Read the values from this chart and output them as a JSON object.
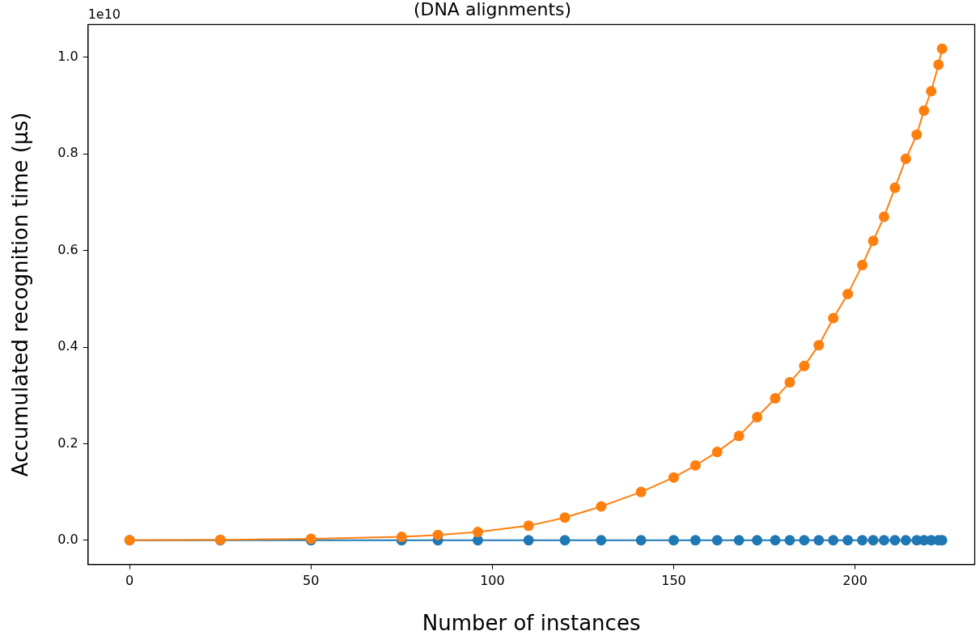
{
  "chart_data": {
    "type": "line",
    "title": "(DNA alignments)",
    "xlabel": "Number of instances",
    "ylabel": "Accumulated recognition time (μs)",
    "annotations": [
      "1e10"
    ],
    "x": [
      0,
      25,
      50,
      75,
      85,
      96,
      110,
      120,
      130,
      141,
      150,
      156,
      162,
      168,
      173,
      178,
      182,
      186,
      190,
      194,
      198,
      202,
      205,
      208,
      211,
      214,
      217,
      219,
      221,
      223,
      224
    ],
    "series": [
      {
        "color": "#1f77b4",
        "values": [
          0,
          0,
          0,
          0,
          0,
          0,
          0,
          0,
          0,
          0,
          0,
          0,
          0,
          0,
          0,
          0,
          0,
          0,
          0,
          0,
          0,
          0,
          0,
          0,
          0,
          0,
          0,
          0,
          0,
          0,
          0
        ]
      },
      {
        "color": "#ff7f0e",
        "values": [
          0,
          0.001,
          0.003,
          0.007,
          0.011,
          0.017,
          0.03,
          0.047,
          0.07,
          0.1,
          0.13,
          0.155,
          0.183,
          0.216,
          0.255,
          0.294,
          0.327,
          0.361,
          0.404,
          0.46,
          0.51,
          0.57,
          0.62,
          0.67,
          0.73,
          0.79,
          0.84,
          0.89,
          0.93,
          0.985,
          1.018
        ]
      }
    ],
    "xlim": [
      -11.5,
      233
    ],
    "xticks": [
      0,
      50,
      100,
      150,
      200
    ],
    "ylim": [
      -0.05,
      1.068
    ],
    "yticks": [
      {
        "value": 0,
        "label": "0.0"
      },
      {
        "value": 0.2,
        "label": "0.2"
      },
      {
        "value": 0.4,
        "label": "0.4"
      },
      {
        "value": 0.6,
        "label": "0.6"
      },
      {
        "value": 0.8,
        "label": "0.8"
      },
      {
        "value": 1,
        "label": "1.0"
      }
    ],
    "grid": false,
    "legend": false,
    "marker": "circle",
    "line_style": "solid"
  }
}
